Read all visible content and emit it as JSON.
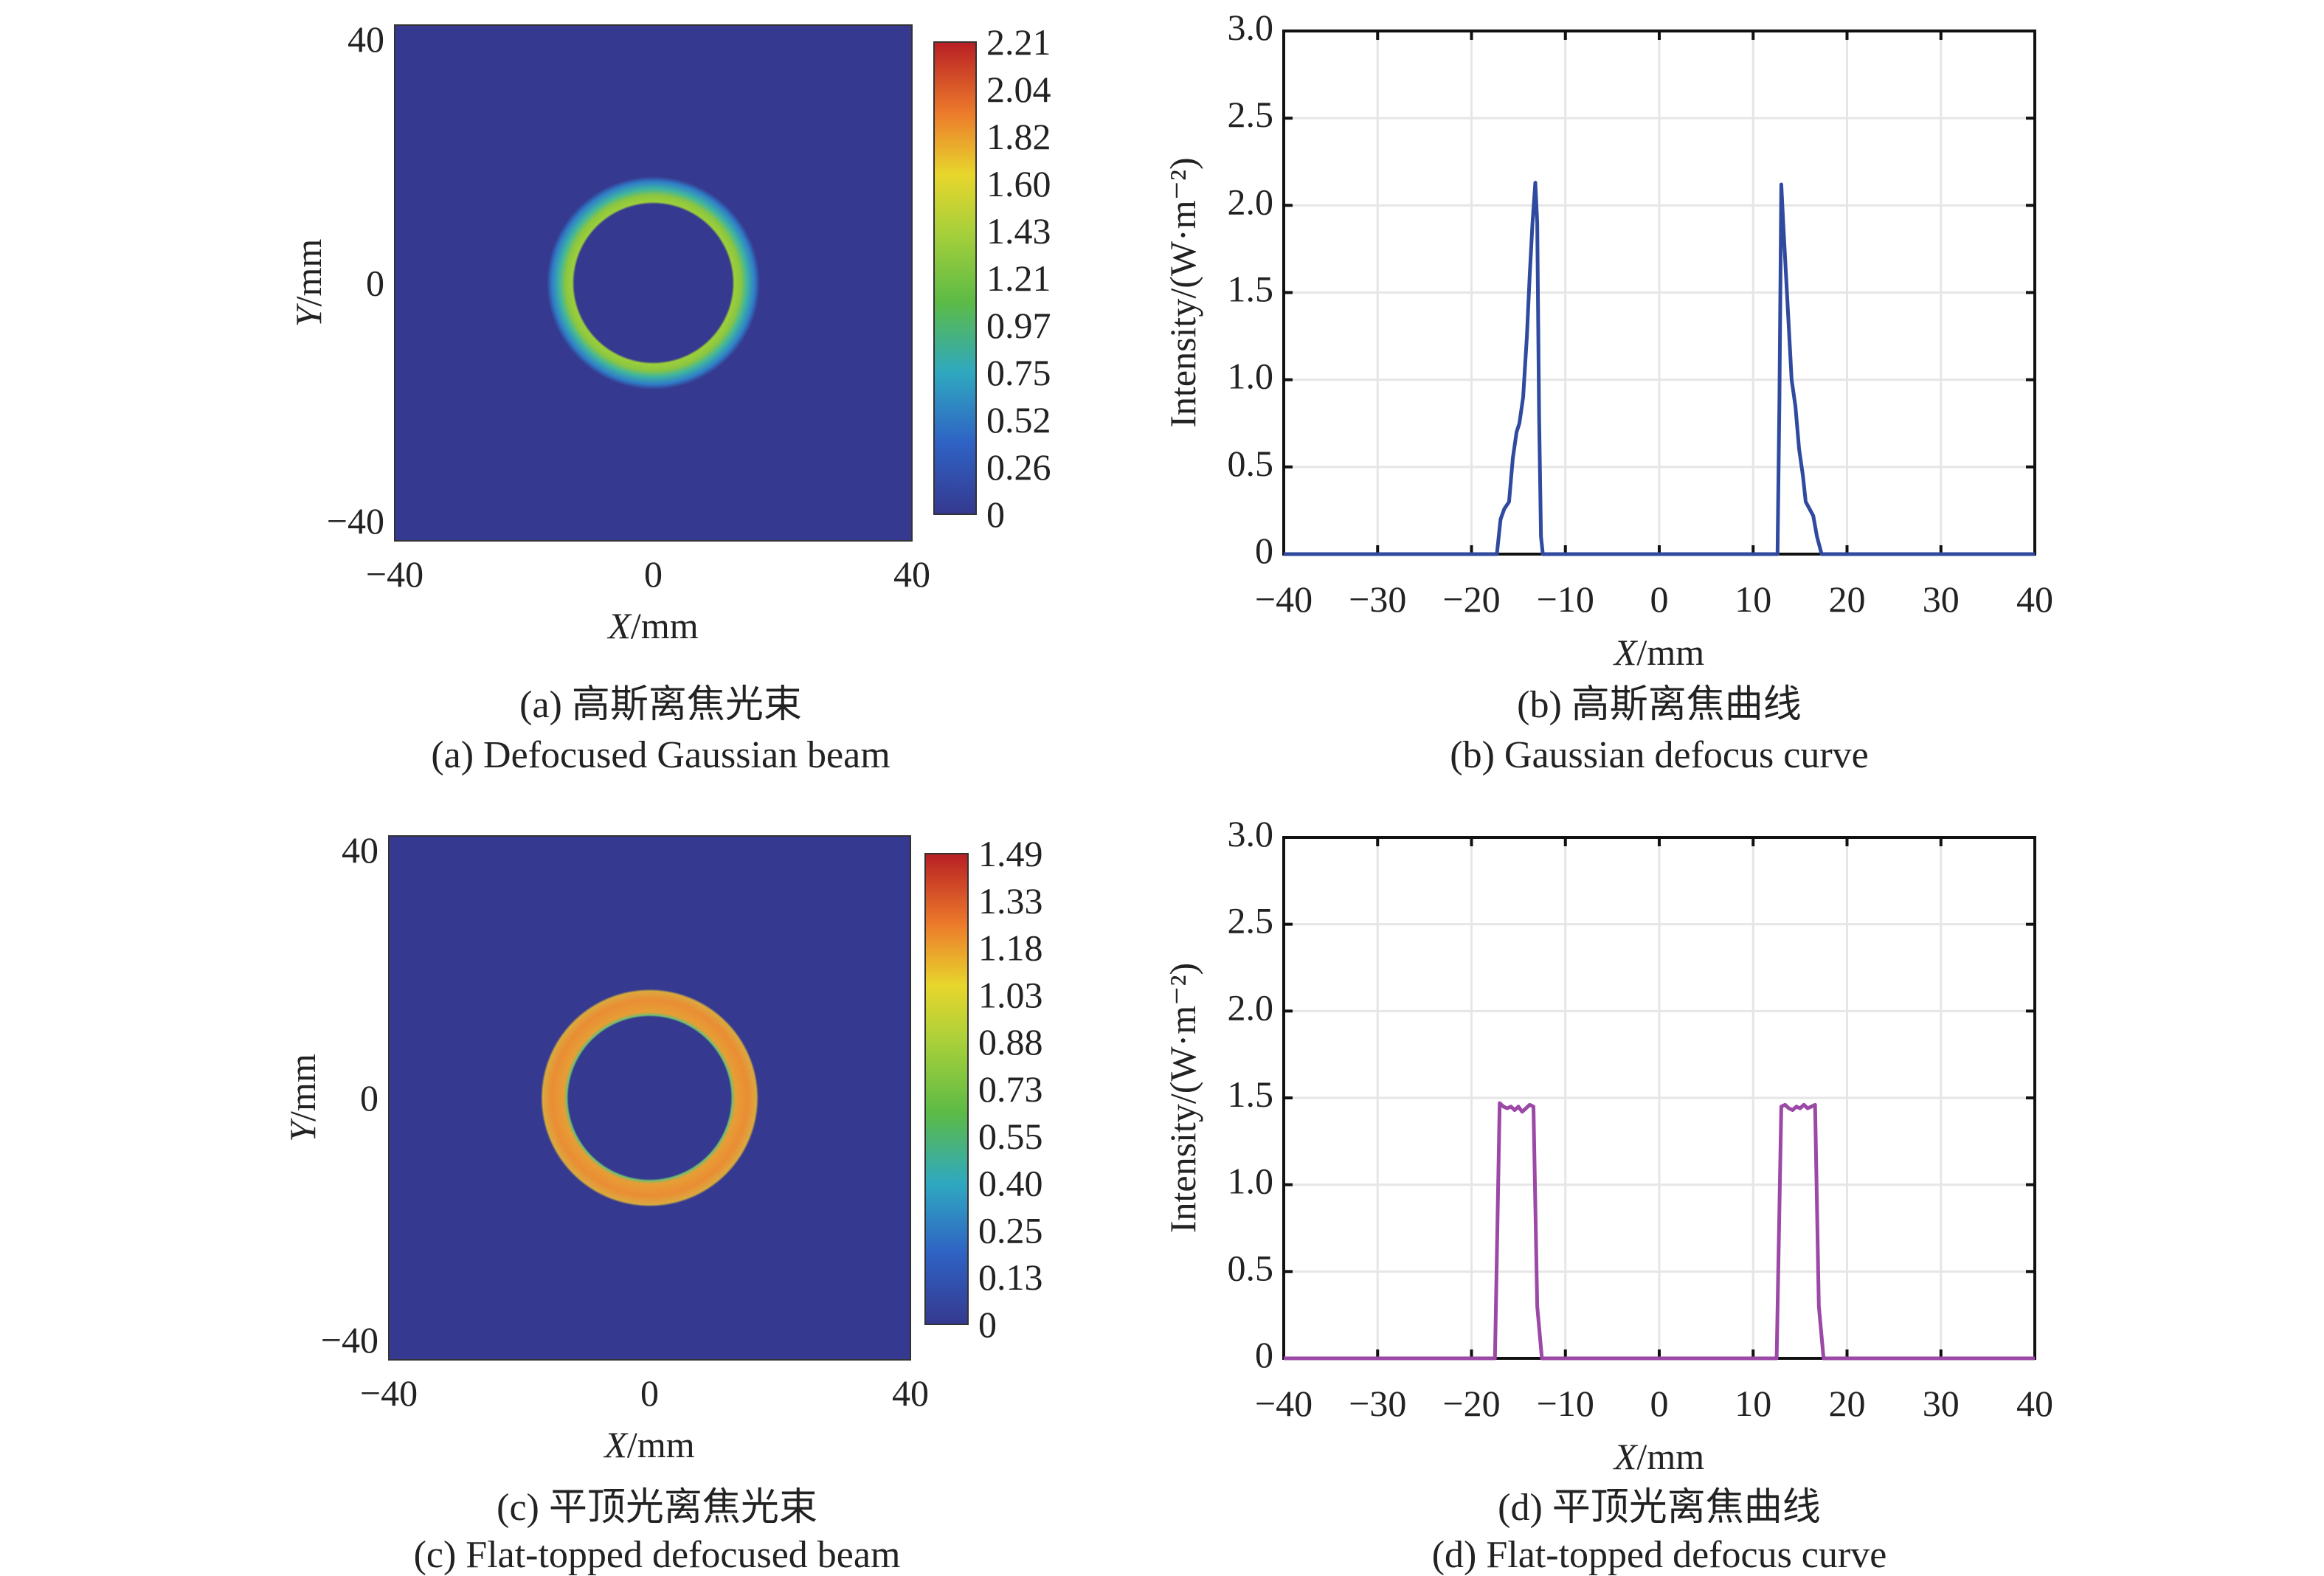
{
  "chart_data": [
    {
      "id": "a",
      "type": "heatmap",
      "caption_cn": "(a) 高斯离焦光束",
      "caption_en": "(a) Defocused Gaussian beam",
      "xlabel_var": "X",
      "xlabel_unit": "/mm",
      "ylabel_var": "Y",
      "ylabel_unit": "/mm",
      "xlim": [
        -40,
        40
      ],
      "ylim": [
        -40,
        40
      ],
      "xticks": [
        "−40",
        "0",
        "40"
      ],
      "yticks": [
        "40",
        "0",
        "−40"
      ],
      "colorbar_ticks": [
        "2.21",
        "2.04",
        "1.82",
        "1.60",
        "1.43",
        "1.21",
        "0.97",
        "0.75",
        "0.52",
        "0.26",
        "0"
      ],
      "colorbar_range": [
        0,
        2.21
      ],
      "ring": {
        "inner_radius_mm": 12.5,
        "peak_radius_mm": 13.5,
        "outer_radius_mm": 16.5,
        "peak_value": 2.1
      }
    },
    {
      "id": "b",
      "type": "line",
      "caption_cn": "(b) 高斯离焦曲线",
      "caption_en": "(b) Gaussian defocus curve",
      "xlabel_var": "X",
      "xlabel_unit": "/mm",
      "ylabel": "Intensity/(W·m⁻²)",
      "xlim": [
        -40,
        40
      ],
      "ylim": [
        0,
        3
      ],
      "xticks": [
        "−40",
        "−30",
        "−20",
        "−10",
        "0",
        "10",
        "20",
        "30",
        "40"
      ],
      "yticks": [
        "0",
        "0.5",
        "1.0",
        "1.5",
        "2.0",
        "2.5",
        "3.0"
      ],
      "grid": true,
      "color": "#2f4a9e",
      "x": [
        -40,
        -17.3,
        -16.9,
        -16.5,
        -16.0,
        -15.6,
        -15.2,
        -14.9,
        -14.5,
        -14.1,
        -13.8,
        -13.5,
        -13.2,
        -13.0,
        -12.8,
        -12.6,
        -12.4,
        12.6,
        12.8,
        13.0,
        13.2,
        13.5,
        13.8,
        14.1,
        14.5,
        14.9,
        15.3,
        15.6,
        16.0,
        16.4,
        16.8,
        17.3,
        40
      ],
      "y": [
        0,
        0,
        0.2,
        0.26,
        0.3,
        0.55,
        0.7,
        0.75,
        0.9,
        1.25,
        1.6,
        1.9,
        2.13,
        1.9,
        0.8,
        0.1,
        0,
        0,
        0.9,
        2.12,
        1.9,
        1.6,
        1.3,
        1.0,
        0.85,
        0.6,
        0.45,
        0.3,
        0.26,
        0.22,
        0.1,
        0,
        0
      ]
    },
    {
      "id": "c",
      "type": "heatmap",
      "caption_cn": "(c) 平顶光离焦光束",
      "caption_en": "(c) Flat-topped defocused beam",
      "xlabel_var": "X",
      "xlabel_unit": "/mm",
      "ylabel_var": "Y",
      "ylabel_unit": "/mm",
      "xlim": [
        -40,
        40
      ],
      "ylim": [
        -40,
        40
      ],
      "xticks": [
        "−40",
        "0",
        "40"
      ],
      "yticks": [
        "40",
        "0",
        "−40"
      ],
      "colorbar_ticks": [
        "1.49",
        "1.33",
        "1.18",
        "1.03",
        "0.88",
        "0.73",
        "0.55",
        "0.40",
        "0.25",
        "0.13",
        "0"
      ],
      "colorbar_range": [
        0,
        1.49
      ],
      "ring": {
        "inner_radius_mm": 12.5,
        "peak_radius_mm": 14.5,
        "outer_radius_mm": 16.7,
        "peak_value": 1.45
      }
    },
    {
      "id": "d",
      "type": "line",
      "caption_cn": "(d) 平顶光离焦曲线",
      "caption_en": "(d) Flat-topped defocus curve",
      "xlabel_var": "X",
      "xlabel_unit": "/mm",
      "ylabel": "Intensity/(W·m⁻²)",
      "xlim": [
        -40,
        40
      ],
      "ylim": [
        0,
        3
      ],
      "xticks": [
        "−40",
        "−30",
        "−20",
        "−10",
        "0",
        "10",
        "20",
        "30",
        "40"
      ],
      "yticks": [
        "0",
        "0.5",
        "1.0",
        "1.5",
        "2.0",
        "2.5",
        "3.0"
      ],
      "grid": true,
      "color": "#9b48a6",
      "x": [
        -40,
        -17.5,
        -17.0,
        -16.6,
        -16.2,
        -15.8,
        -15.4,
        -15.0,
        -14.6,
        -14.2,
        -13.8,
        -13.4,
        -13.0,
        -12.5,
        12.5,
        13.0,
        13.4,
        13.8,
        14.2,
        14.6,
        15.0,
        15.4,
        15.8,
        16.2,
        16.6,
        17.0,
        17.5,
        40
      ],
      "y": [
        0,
        0,
        1.47,
        1.45,
        1.44,
        1.45,
        1.43,
        1.45,
        1.42,
        1.44,
        1.46,
        1.45,
        0.3,
        0,
        0,
        1.45,
        1.46,
        1.44,
        1.43,
        1.45,
        1.44,
        1.46,
        1.44,
        1.45,
        1.46,
        0.3,
        0,
        0
      ]
    }
  ]
}
